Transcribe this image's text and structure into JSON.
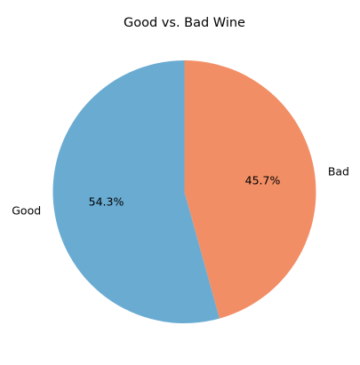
{
  "chart_data": {
    "type": "pie",
    "title": "Good vs. Bad Wine",
    "start_angle_deg": 90,
    "direction": "counterclockwise",
    "slices": [
      {
        "label": "Good",
        "value": 54.3,
        "pct_label": "54.3%",
        "color": "#6aabd2"
      },
      {
        "label": "Bad",
        "value": 45.7,
        "pct_label": "45.7%",
        "color": "#f28e65"
      }
    ]
  }
}
